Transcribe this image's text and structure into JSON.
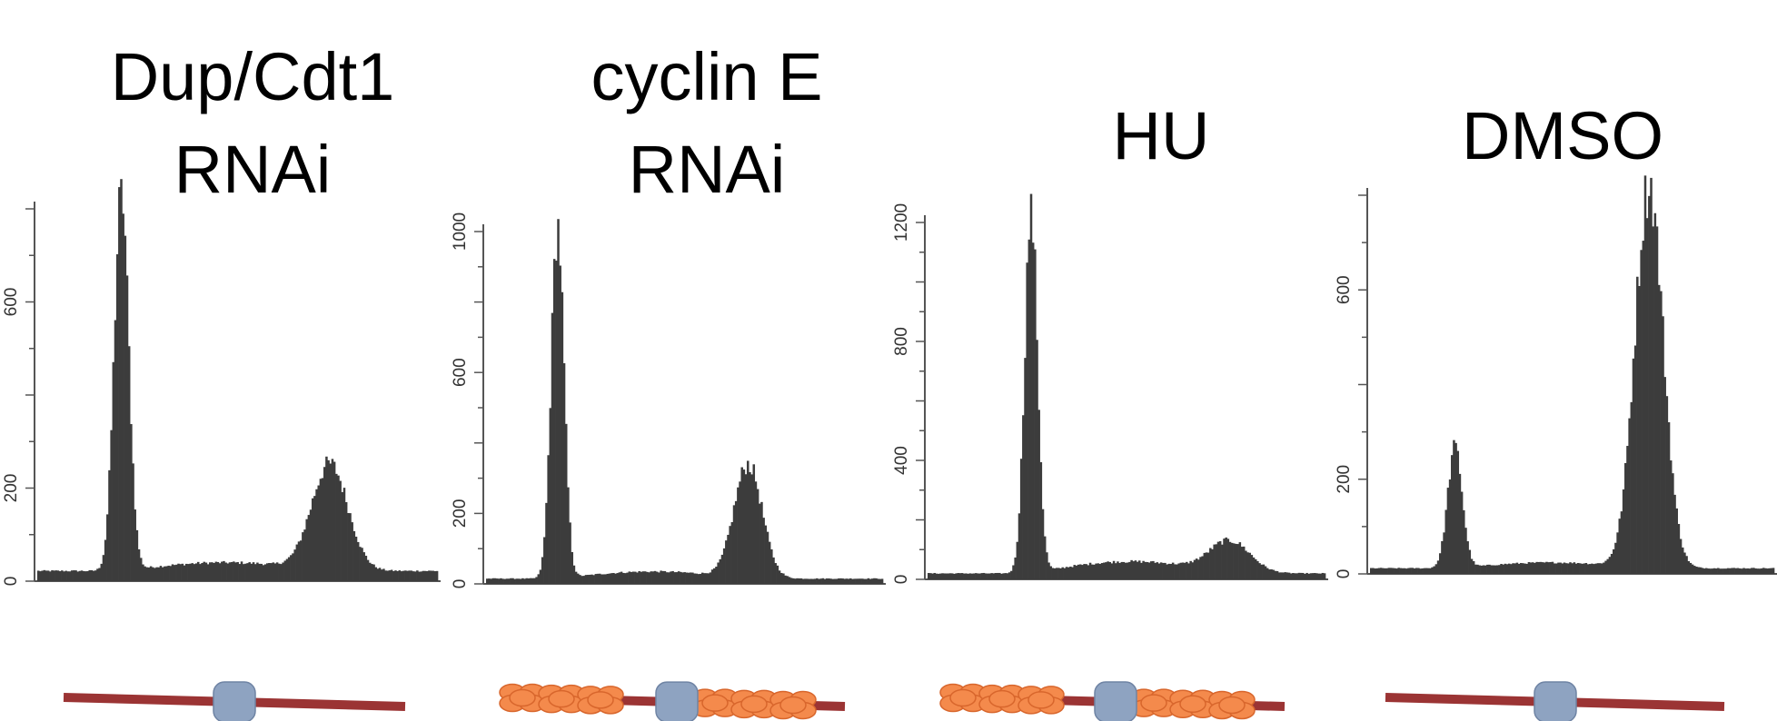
{
  "colors": {
    "bar": "#3c3c3c",
    "axis": "#555555",
    "chromatin": "#9b3434",
    "origin_protein": "#8ea3c1",
    "mcm_complex": "#f48a4c"
  },
  "chart_data": [
    {
      "type": "bar",
      "title_lines": [
        "Dup/Cdt1",
        "RNAi"
      ],
      "ylim": [
        0,
        800
      ],
      "yticks": [
        0,
        200,
        600
      ],
      "ytick_labels": [
        "0",
        "200",
        "600"
      ],
      "peaks": [
        {
          "center": 0.21,
          "height": 815,
          "width": 0.018
        },
        {
          "center": 0.73,
          "height": 230,
          "width": 0.045
        }
      ],
      "baseline": 22,
      "plateau": 18,
      "chromatin_state": "bare",
      "chromatin_icon": "origin-protein-icon"
    },
    {
      "type": "bar",
      "title_lines": [
        "cyclin E",
        "RNAi"
      ],
      "ylim": [
        0,
        1000
      ],
      "yticks": [
        0,
        200,
        600,
        1000
      ],
      "ytick_labels": [
        "0",
        "200",
        "600",
        "1000"
      ],
      "peaks": [
        {
          "center": 0.18,
          "height": 1000,
          "width": 0.016
        },
        {
          "center": 0.66,
          "height": 325,
          "width": 0.035
        }
      ],
      "baseline": 15,
      "plateau": 20,
      "chromatin_state": "loaded",
      "chromatin_icon": "mcm-complex-icon"
    },
    {
      "type": "bar",
      "title_lines": [
        "HU"
      ],
      "ylim": [
        0,
        1200
      ],
      "yticks": [
        0,
        400,
        800,
        1200
      ],
      "ytick_labels": [
        "0",
        "400",
        "800",
        "1200"
      ],
      "peaks": [
        {
          "center": 0.26,
          "height": 1220,
          "width": 0.016
        },
        {
          "center": 0.76,
          "height": 110,
          "width": 0.05
        }
      ],
      "baseline": 20,
      "plateau": 40,
      "chromatin_state": "loaded",
      "chromatin_icon": "mcm-complex-icon"
    },
    {
      "type": "bar",
      "title_lines": [
        "DMSO"
      ],
      "ylim": [
        0,
        800
      ],
      "yticks": [
        0,
        200,
        600
      ],
      "ytick_labels": [
        "0",
        "200",
        "600"
      ],
      "peaks": [
        {
          "center": 0.21,
          "height": 255,
          "width": 0.018
        },
        {
          "center": 0.69,
          "height": 810,
          "width": 0.035
        }
      ],
      "baseline": 12,
      "plateau": 12,
      "chromatin_state": "bare",
      "chromatin_icon": "origin-protein-icon"
    }
  ]
}
